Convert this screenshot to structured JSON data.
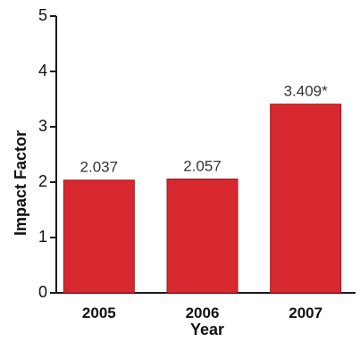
{
  "chart_data": {
    "type": "bar",
    "title": "",
    "xlabel": "Year",
    "ylabel": "Impact Factor",
    "categories": [
      "2005",
      "2006",
      "2007"
    ],
    "values": [
      2.037,
      2.057,
      3.409
    ],
    "data_labels": [
      "2.037",
      "2.057",
      "3.409*"
    ],
    "ylim": [
      0,
      5
    ],
    "yticks": [
      0,
      1,
      2,
      3,
      4,
      5
    ],
    "grid": false,
    "bar_color": "#d7282f",
    "bar_edge_color": "#9e1a20"
  }
}
